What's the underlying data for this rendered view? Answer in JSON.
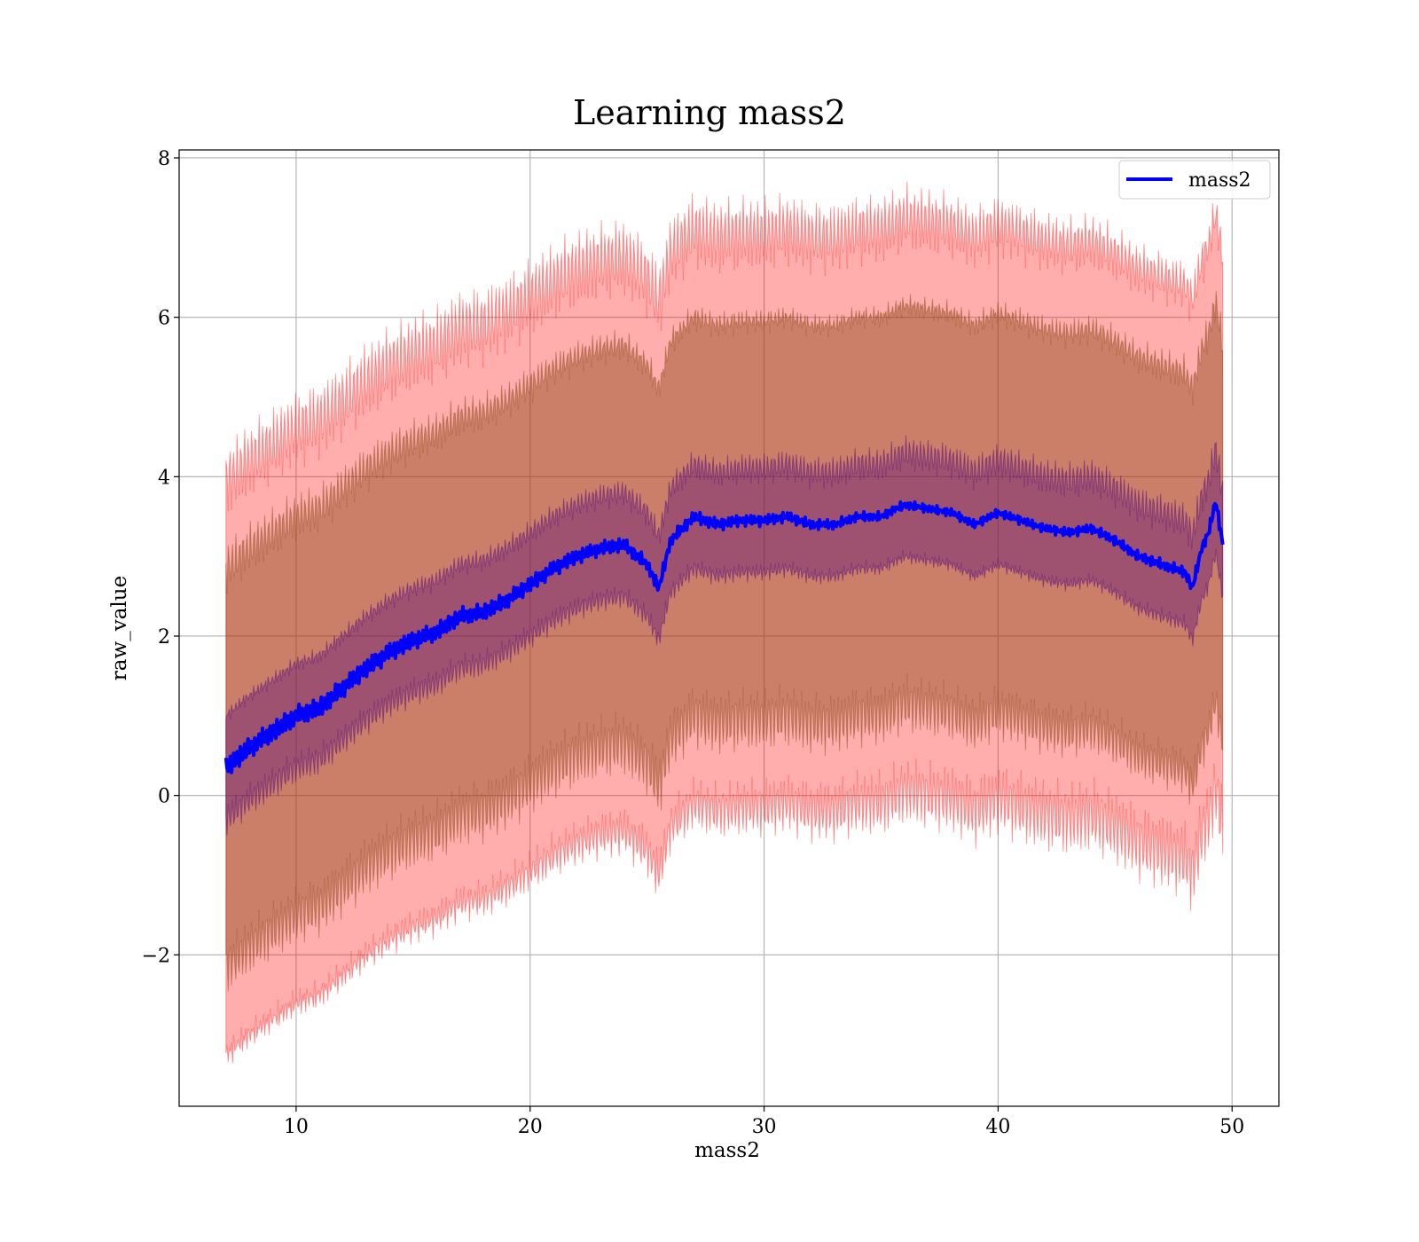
{
  "chart_data": {
    "type": "line",
    "title": "Learning mass2",
    "xlabel": "mass2",
    "ylabel": "raw_value",
    "xlim": [
      5,
      52
    ],
    "ylim": [
      -3.9,
      8.1
    ],
    "x_ticks": [
      10,
      20,
      30,
      40,
      50
    ],
    "x_tick_labels": [
      "10",
      "20",
      "30",
      "40",
      "50"
    ],
    "y_ticks": [
      -2,
      0,
      2,
      4,
      6,
      8
    ],
    "y_tick_labels": [
      "−2",
      "0",
      "2",
      "4",
      "6",
      "8"
    ],
    "grid": true,
    "legend": {
      "position": "top-right",
      "entries": [
        "mass2"
      ]
    },
    "colors": {
      "line": "#0000ff",
      "band_outer": "#ff0000",
      "band_middle": "#8b4513",
      "band_inner": "#4b0082"
    },
    "series": [
      {
        "name": "mass2",
        "x": [
          7,
          8,
          9,
          10,
          11,
          12,
          13,
          14,
          15,
          16,
          17,
          18,
          19,
          20,
          21,
          22,
          23,
          24,
          25,
          25.5,
          26,
          27,
          28,
          29,
          30,
          31,
          32,
          33,
          34,
          35,
          36,
          37,
          38,
          39,
          40,
          41,
          42,
          43,
          44,
          45,
          46,
          47,
          48,
          48.3,
          48.7,
          49,
          49.3,
          49.6
        ],
        "values": [
          0.35,
          0.6,
          0.8,
          1.0,
          1.1,
          1.35,
          1.6,
          1.8,
          1.95,
          2.05,
          2.25,
          2.3,
          2.45,
          2.65,
          2.85,
          3.0,
          3.1,
          3.15,
          2.9,
          2.6,
          3.2,
          3.5,
          3.4,
          3.45,
          3.45,
          3.5,
          3.4,
          3.4,
          3.5,
          3.5,
          3.65,
          3.6,
          3.55,
          3.4,
          3.55,
          3.45,
          3.35,
          3.3,
          3.35,
          3.2,
          3.0,
          2.9,
          2.8,
          2.6,
          3.1,
          3.3,
          3.7,
          3.15
        ],
        "band_inner_halfwidth": 0.65,
        "band_middle_halfwidth": 2.5,
        "band_outer_halfwidth": 3.6
      }
    ]
  }
}
